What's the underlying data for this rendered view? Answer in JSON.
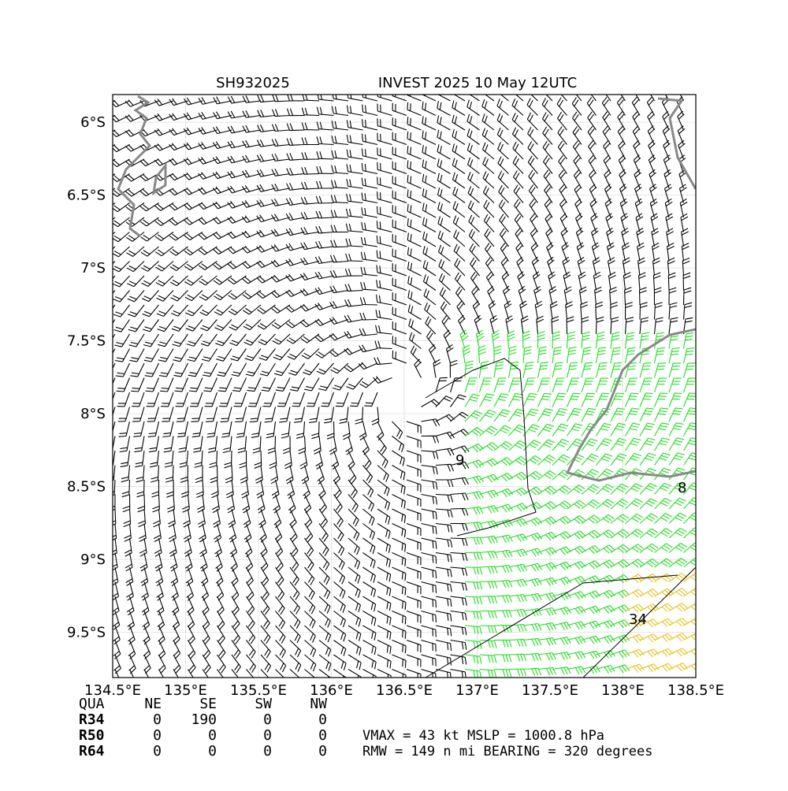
{
  "map": {
    "storm_id": "SH932025",
    "title": "INVEST 2025 10 May 12UTC",
    "xlim": [
      134.5,
      138.5
    ],
    "ylim": [
      -9.81,
      -5.81
    ],
    "xticks": [
      {
        "value": 134.5,
        "label": "134.5°E"
      },
      {
        "value": 135,
        "label": "135°E"
      },
      {
        "value": 135.5,
        "label": "135.5°E"
      },
      {
        "value": 136,
        "label": "136°E"
      },
      {
        "value": 136.5,
        "label": "136.5°E"
      },
      {
        "value": 137,
        "label": "137°E"
      },
      {
        "value": 137.5,
        "label": "137.5°E"
      },
      {
        "value": 138,
        "label": "138°E"
      },
      {
        "value": 138.5,
        "label": "138.5°E"
      }
    ],
    "yticks": [
      {
        "value": -6,
        "label": "6°S"
      },
      {
        "value": -6.5,
        "label": "6.5°S"
      },
      {
        "value": -7,
        "label": "7°S"
      },
      {
        "value": -7.5,
        "label": "7.5°S"
      },
      {
        "value": -8,
        "label": "8°S"
      },
      {
        "value": -8.5,
        "label": "8.5°S"
      },
      {
        "value": -9,
        "label": "9°S"
      },
      {
        "value": -9.5,
        "label": "9.5°S"
      }
    ],
    "contour_labels": [
      "9",
      "8",
      "34"
    ]
  },
  "radii_table": {
    "header": [
      "QUA",
      "NE",
      "SE",
      "SW",
      "NW"
    ],
    "rows": [
      [
        "R34",
        "0",
        "190",
        "0",
        "0"
      ],
      [
        "R50",
        "0",
        "0",
        "0",
        "0"
      ],
      [
        "R64",
        "0",
        "0",
        "0",
        "0"
      ]
    ]
  },
  "summary": [
    "VMAX =  43 kt MSLP = 1000.8 hPa",
    "RMW = 149 n mi BEARING = 320 degrees"
  ]
}
